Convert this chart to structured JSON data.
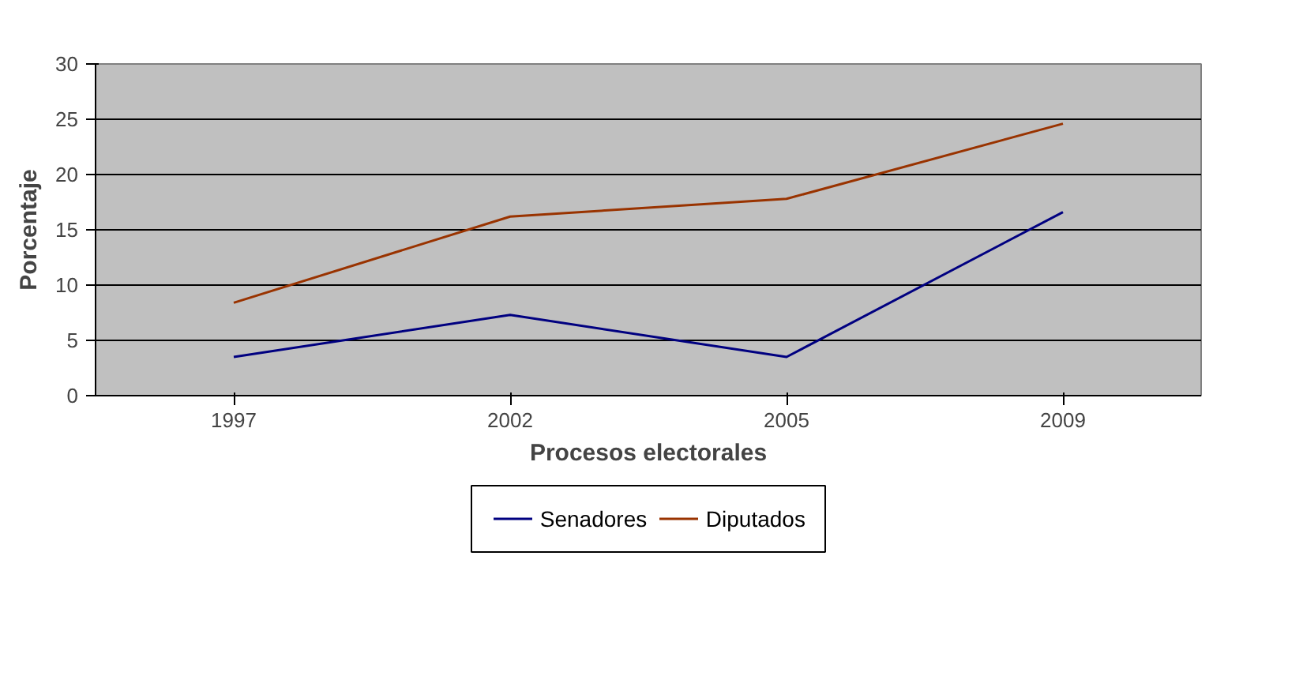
{
  "chart_data": {
    "type": "line",
    "xlabel": "Procesos electorales",
    "ylabel": "Porcentaje",
    "categories": [
      "1997",
      "2002",
      "2005",
      "2009"
    ],
    "series": [
      {
        "name": "Senadores",
        "color": "#000080",
        "values": [
          3.5,
          7.3,
          3.5,
          16.6
        ]
      },
      {
        "name": "Diputados",
        "color": "#993300",
        "values": [
          8.4,
          16.2,
          17.8,
          24.6
        ]
      }
    ],
    "ylim": [
      0,
      30
    ],
    "yticks": [
      0,
      5,
      10,
      15,
      20,
      25,
      30
    ],
    "grid": "y",
    "legend": "bottom",
    "marker": "none",
    "line_style": "solid"
  }
}
